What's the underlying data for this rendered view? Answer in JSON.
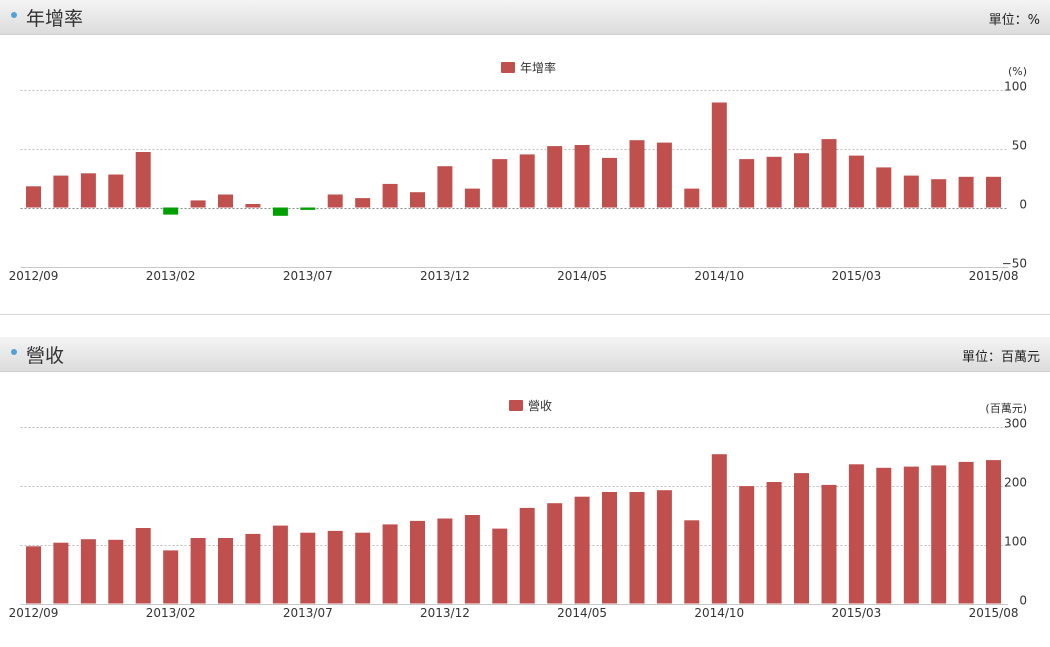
{
  "panels": [
    {
      "title": "年增率",
      "unit": "單位：%"
    },
    {
      "title": "營收",
      "unit": "單位：百萬元"
    }
  ],
  "chart_data": [
    {
      "type": "bar",
      "legend": "年增率",
      "unit_label": "(%)",
      "y_ticks": [
        "100",
        "50",
        "0",
        "−50"
      ],
      "ylim": [
        -50,
        100
      ],
      "x_labels": [
        "2012/09",
        "2013/02",
        "2013/07",
        "2013/12",
        "2014/05",
        "2014/10",
        "2015/03",
        "2015/08"
      ],
      "colors": {
        "positive": "#c0504d",
        "negative": "#00a000"
      },
      "values": [
        18,
        27,
        29,
        28,
        47,
        -6,
        6,
        11,
        3,
        -7,
        -2,
        11,
        8,
        20,
        13,
        35,
        16,
        41,
        45,
        52,
        53,
        42,
        57,
        55,
        16,
        89,
        41,
        43,
        46,
        58,
        44,
        34,
        27,
        24,
        26,
        26
      ]
    },
    {
      "type": "bar",
      "legend": "營收",
      "unit_label": "(百萬元)",
      "y_ticks": [
        "300",
        "200",
        "100",
        "0"
      ],
      "ylim": [
        0,
        300
      ],
      "x_labels": [
        "2012/09",
        "2013/02",
        "2013/07",
        "2013/12",
        "2014/05",
        "2014/10",
        "2015/03",
        "2015/08"
      ],
      "colors": {
        "positive": "#c0504d"
      },
      "values": [
        97,
        103,
        109,
        108,
        128,
        90,
        111,
        111,
        118,
        132,
        120,
        123,
        120,
        134,
        140,
        144,
        150,
        127,
        162,
        170,
        181,
        189,
        189,
        192,
        141,
        253,
        199,
        206,
        221,
        201,
        236,
        230,
        232,
        234,
        240,
        243
      ]
    }
  ]
}
